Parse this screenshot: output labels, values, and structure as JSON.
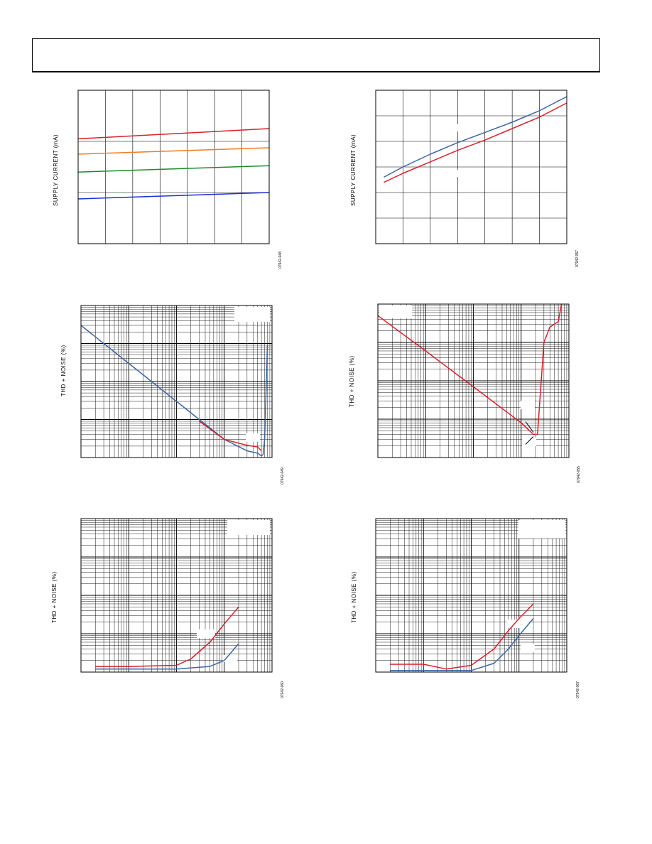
{
  "page": {
    "header_text": ""
  },
  "colors": {
    "red": "#d7212e",
    "orange": "#f07c22",
    "green": "#1e8a2a",
    "blue": "#1f2ed8",
    "steel": "#3d65a3",
    "grid": "#000000"
  },
  "chart_data": [
    {
      "id": "c1",
      "type": "line",
      "ylabel": "SUPPLY CURRENT (mA)",
      "fig_id": "07942-048",
      "x_scale": "linear",
      "y_scale": "linear",
      "xlim": [
        0,
        7
      ],
      "ylim": [
        0,
        6
      ],
      "grid": {
        "x_divisions": 7,
        "y_divisions": 3
      },
      "series": [
        {
          "color": "red",
          "x": [
            0,
            7
          ],
          "y": [
            4.1,
            4.5
          ]
        },
        {
          "color": "orange",
          "x": [
            0,
            7
          ],
          "y": [
            3.5,
            3.75
          ]
        },
        {
          "color": "green",
          "x": [
            0,
            7
          ],
          "y": [
            2.8,
            3.05
          ]
        },
        {
          "color": "blue",
          "x": [
            0,
            7
          ],
          "y": [
            1.75,
            2.0
          ]
        }
      ]
    },
    {
      "id": "c2",
      "type": "line",
      "ylabel": "SUPPLY CURRENT (mA)",
      "fig_id": "07942-057",
      "x_scale": "linear",
      "y_scale": "linear",
      "xlim": [
        0,
        7
      ],
      "ylim": [
        0,
        6
      ],
      "grid": {
        "x_divisions": 7,
        "y_divisions": 6
      },
      "series": [
        {
          "color": "steel",
          "x": [
            0.3,
            1,
            2,
            3,
            4,
            5,
            6,
            7
          ],
          "y": [
            2.6,
            3.0,
            3.5,
            3.95,
            4.35,
            4.75,
            5.2,
            5.75
          ]
        },
        {
          "color": "red",
          "x": [
            0.3,
            1,
            2,
            3,
            4,
            5,
            6,
            7
          ],
          "y": [
            2.4,
            2.75,
            3.2,
            3.65,
            4.05,
            4.5,
            4.95,
            5.5
          ]
        }
      ]
    },
    {
      "id": "c3",
      "type": "line",
      "ylabel": "THD + NOISE (%)",
      "fig_id": "07942-049",
      "x_scale": "log",
      "y_scale": "log",
      "xlim": [
        0.001,
        10
      ],
      "ylim": [
        0.001,
        10
      ],
      "grid": {
        "x_decades": 4,
        "y_decades": 4
      },
      "series": [
        {
          "color": "steel",
          "x": [
            0.001,
            0.01,
            0.1,
            1,
            3,
            5,
            6,
            6.5,
            7,
            8
          ],
          "y": [
            3,
            0.3,
            0.03,
            0.003,
            0.0015,
            0.0013,
            0.0011,
            0.0012,
            0.003,
            0.9
          ]
        },
        {
          "color": "red",
          "x": [
            0.3,
            1,
            3,
            5,
            6
          ],
          "y": [
            0.009,
            0.003,
            0.0021,
            0.0019,
            0.0015
          ]
        }
      ]
    },
    {
      "id": "c4",
      "type": "line",
      "ylabel": "THD + NOISE (%)",
      "fig_id": "07942-055",
      "x_scale": "log",
      "y_scale": "log",
      "xlim": [
        0.001,
        10
      ],
      "ylim": [
        0.001,
        10
      ],
      "grid": {
        "x_decades": 4,
        "y_decades": 4
      },
      "series": [
        {
          "color": "red",
          "x": [
            0.001,
            0.01,
            0.1,
            1,
            1.5,
            1.8,
            2.0,
            2.2,
            3.0,
            4.0,
            6,
            7
          ],
          "y": [
            5,
            0.6,
            0.07,
            0.008,
            0.005,
            0.004,
            0.004,
            0.004,
            1.0,
            2.5,
            3.5,
            10
          ]
        }
      ]
    },
    {
      "id": "c5",
      "type": "line",
      "ylabel": "THD + NOISE (%)",
      "fig_id": "07942-060",
      "x_scale": "log",
      "y_scale": "log",
      "xlim": [
        10,
        100000
      ],
      "ylim": [
        0.001,
        10
      ],
      "grid": {
        "x_decades": 4,
        "y_decades": 4
      },
      "series": [
        {
          "color": "red",
          "x": [
            20,
            100,
            1000,
            2000,
            5000,
            10000,
            20000
          ],
          "y": [
            0.0014,
            0.0014,
            0.0015,
            0.0022,
            0.006,
            0.018,
            0.05
          ]
        },
        {
          "color": "steel",
          "x": [
            20,
            100,
            1000,
            5000,
            10000,
            20000
          ],
          "y": [
            0.0012,
            0.0012,
            0.0012,
            0.0014,
            0.002,
            0.0055
          ]
        }
      ]
    },
    {
      "id": "c6",
      "type": "line",
      "ylabel": "THD + NOISE (%)",
      "fig_id": "07942-067",
      "x_scale": "log",
      "y_scale": "log",
      "xlim": [
        10,
        100000
      ],
      "ylim": [
        0.001,
        10
      ],
      "grid": {
        "x_decades": 4,
        "y_decades": 4
      },
      "series": [
        {
          "color": "red",
          "x": [
            20,
            100,
            300,
            1000,
            3000,
            6000,
            10000,
            20000
          ],
          "y": [
            0.0016,
            0.0016,
            0.0012,
            0.0015,
            0.004,
            0.012,
            0.025,
            0.06
          ]
        },
        {
          "color": "steel",
          "x": [
            20,
            100,
            1000,
            3000,
            6000,
            10000,
            20000
          ],
          "y": [
            0.0011,
            0.0011,
            0.0011,
            0.0017,
            0.004,
            0.009,
            0.025
          ]
        }
      ]
    }
  ]
}
